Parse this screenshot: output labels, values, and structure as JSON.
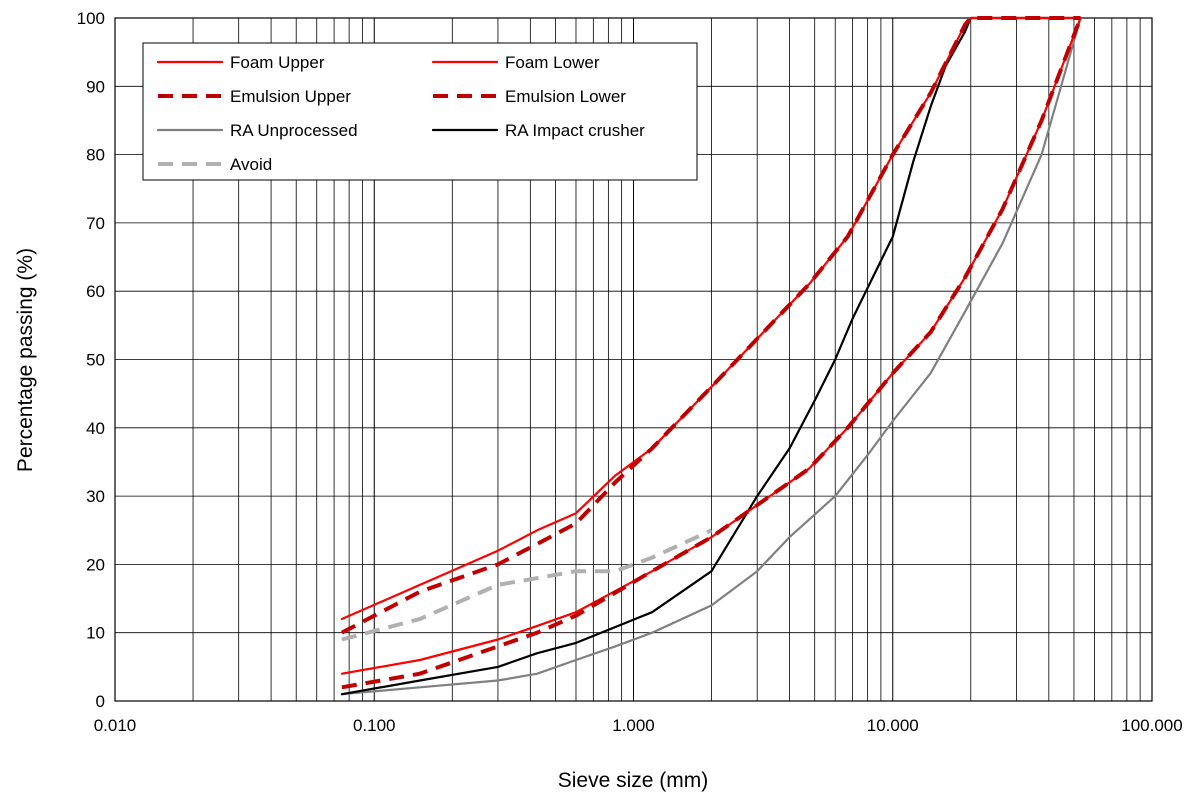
{
  "chart_data": {
    "type": "line",
    "x_scale": "log",
    "xlabel": "Sieve size (mm)",
    "ylabel": "Percentage passing (%)",
    "xlim": [
      0.01,
      100
    ],
    "ylim": [
      0,
      100
    ],
    "x_ticks": [
      {
        "value": 0.01,
        "label": "0.010"
      },
      {
        "value": 0.1,
        "label": "0.100"
      },
      {
        "value": 1,
        "label": "1.000"
      },
      {
        "value": 10,
        "label": "10.000"
      },
      {
        "value": 100,
        "label": "100.000"
      }
    ],
    "y_ticks": [
      0,
      10,
      20,
      30,
      40,
      50,
      60,
      70,
      80,
      90,
      100
    ],
    "grid": true,
    "legend_position": "top-left",
    "series": [
      {
        "name": "Foam Upper",
        "color": "#ff0000",
        "style": "solid",
        "points": [
          [
            0.075,
            12
          ],
          [
            0.15,
            17
          ],
          [
            0.3,
            22
          ],
          [
            0.425,
            25
          ],
          [
            0.6,
            27.5
          ],
          [
            0.85,
            33
          ],
          [
            1.18,
            37
          ],
          [
            2,
            46
          ],
          [
            4.75,
            61
          ],
          [
            6.7,
            68
          ],
          [
            10,
            80
          ],
          [
            14,
            89
          ],
          [
            19,
            99
          ],
          [
            20,
            100
          ],
          [
            26.5,
            100
          ],
          [
            53,
            100
          ]
        ]
      },
      {
        "name": "Foam Lower",
        "color": "#ff0000",
        "style": "solid",
        "points": [
          [
            0.075,
            4
          ],
          [
            0.15,
            6
          ],
          [
            0.3,
            9
          ],
          [
            0.425,
            11
          ],
          [
            0.6,
            13
          ],
          [
            1.18,
            19
          ],
          [
            2,
            24
          ],
          [
            4.75,
            34
          ],
          [
            6.7,
            40
          ],
          [
            10,
            48
          ],
          [
            14,
            54
          ],
          [
            19,
            62
          ],
          [
            26.5,
            72
          ],
          [
            37.5,
            85
          ],
          [
            53,
            100
          ]
        ]
      },
      {
        "name": "Emulsion Upper",
        "color": "#c00000",
        "style": "dashed",
        "points": [
          [
            0.075,
            10
          ],
          [
            0.15,
            16
          ],
          [
            0.3,
            20
          ],
          [
            0.425,
            23
          ],
          [
            0.6,
            26
          ],
          [
            0.85,
            32
          ],
          [
            1.18,
            37
          ],
          [
            2,
            46
          ],
          [
            4.75,
            61
          ],
          [
            6.7,
            68
          ],
          [
            10,
            80
          ],
          [
            14,
            89
          ],
          [
            19,
            99
          ],
          [
            20,
            100
          ],
          [
            26.5,
            100
          ],
          [
            53,
            100
          ]
        ]
      },
      {
        "name": "Emulsion Lower",
        "color": "#c00000",
        "style": "dashed",
        "points": [
          [
            0.075,
            2
          ],
          [
            0.15,
            4
          ],
          [
            0.3,
            8
          ],
          [
            0.425,
            10
          ],
          [
            0.6,
            12.5
          ],
          [
            1.18,
            19
          ],
          [
            2,
            24
          ],
          [
            4.75,
            34
          ],
          [
            6.7,
            40
          ],
          [
            10,
            48
          ],
          [
            14,
            54
          ],
          [
            19,
            62
          ],
          [
            26.5,
            72
          ],
          [
            37.5,
            85
          ],
          [
            53,
            100
          ]
        ]
      },
      {
        "name": "RA Unprocessed",
        "color": "#808080",
        "style": "solid",
        "points": [
          [
            0.075,
            1
          ],
          [
            0.15,
            2
          ],
          [
            0.3,
            3
          ],
          [
            0.425,
            4
          ],
          [
            0.6,
            6
          ],
          [
            0.85,
            8
          ],
          [
            1.18,
            10
          ],
          [
            2,
            14
          ],
          [
            3,
            19
          ],
          [
            4,
            24
          ],
          [
            6,
            30
          ],
          [
            8,
            36
          ],
          [
            10,
            41
          ],
          [
            14,
            48
          ],
          [
            19,
            57
          ],
          [
            26.5,
            67
          ],
          [
            37.5,
            80
          ],
          [
            53,
            100
          ]
        ]
      },
      {
        "name": "RA Impact crusher",
        "color": "#000000",
        "style": "solid",
        "points": [
          [
            0.075,
            1
          ],
          [
            0.15,
            3
          ],
          [
            0.3,
            5
          ],
          [
            0.425,
            7
          ],
          [
            0.6,
            8.5
          ],
          [
            1.18,
            13
          ],
          [
            2,
            19
          ],
          [
            3,
            30
          ],
          [
            4,
            37
          ],
          [
            5,
            44
          ],
          [
            6,
            50
          ],
          [
            7,
            56
          ],
          [
            10,
            68
          ],
          [
            12,
            79
          ],
          [
            14,
            87
          ],
          [
            16,
            93
          ],
          [
            19,
            98
          ],
          [
            20,
            100
          ],
          [
            26.5,
            100
          ],
          [
            53,
            100
          ]
        ]
      },
      {
        "name": "Avoid",
        "color": "#b0b0b0",
        "style": "dashed",
        "points": [
          [
            0.075,
            9
          ],
          [
            0.15,
            12
          ],
          [
            0.3,
            17
          ],
          [
            0.425,
            18
          ],
          [
            0.6,
            19
          ],
          [
            0.85,
            19
          ],
          [
            1.18,
            21
          ],
          [
            2,
            25
          ]
        ]
      }
    ]
  }
}
